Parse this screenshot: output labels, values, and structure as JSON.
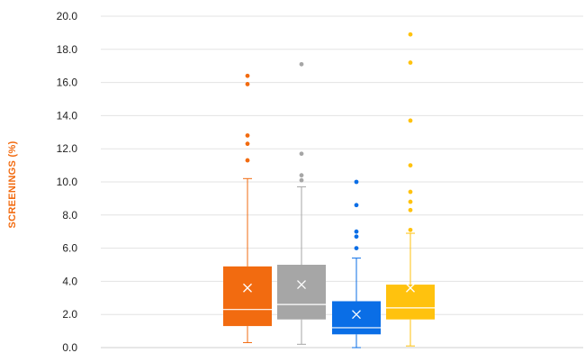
{
  "chart_data": {
    "type": "box",
    "title": "",
    "xlabel": "",
    "ylabel": "SCREENINGS (%)",
    "ylim": [
      0,
      20
    ],
    "yticks": [
      "0.0",
      "2.0",
      "4.0",
      "6.0",
      "8.0",
      "10.0",
      "12.0",
      "14.0",
      "16.0",
      "18.0",
      "20.0"
    ],
    "grid": true,
    "legend": "none",
    "series": [
      {
        "color": "#F26B10",
        "whisker_low": 0.3,
        "q1": 1.3,
        "median": 2.3,
        "mean": 3.6,
        "q3": 4.9,
        "whisker_high": 10.2,
        "outliers": [
          11.3,
          12.3,
          12.8,
          15.9,
          16.4
        ]
      },
      {
        "color": "#A6A6A6",
        "whisker_low": 0.2,
        "q1": 1.7,
        "median": 2.6,
        "mean": 3.8,
        "q3": 5.0,
        "whisker_high": 9.7,
        "outliers": [
          10.1,
          10.4,
          11.7,
          17.1
        ]
      },
      {
        "color": "#0A6EE6",
        "whisker_low": 0.0,
        "q1": 0.8,
        "median": 1.2,
        "mean": 2.0,
        "q3": 2.8,
        "whisker_high": 5.4,
        "outliers": [
          6.0,
          6.7,
          7.0,
          8.6,
          10.0
        ]
      },
      {
        "color": "#FFC20E",
        "whisker_low": 0.1,
        "q1": 1.7,
        "median": 2.4,
        "mean": 3.6,
        "q3": 3.8,
        "whisker_high": 6.9,
        "outliers": [
          7.1,
          8.3,
          8.8,
          9.4,
          11.0,
          13.7,
          17.2,
          18.9
        ]
      }
    ]
  }
}
